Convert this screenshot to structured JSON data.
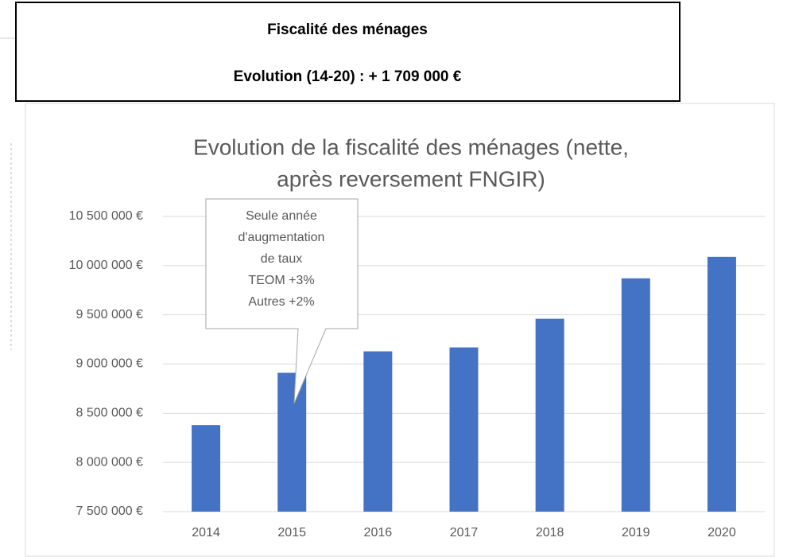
{
  "header": {
    "title": "Fiscalité des ménages",
    "subtitle": "Evolution (14-20) : + 1 709 000 €"
  },
  "chart_data": {
    "type": "bar",
    "title": [
      "Evolution de la fiscalité des ménages (nette,",
      "après reversement FNGIR)"
    ],
    "categories": [
      "2014",
      "2015",
      "2016",
      "2017",
      "2018",
      "2019",
      "2020"
    ],
    "values": [
      8380000,
      8911000,
      9129000,
      9169000,
      9460000,
      9871000,
      10089000
    ],
    "color": "#4472c4",
    "ylim": [
      7500000,
      10500000
    ],
    "yticks": [
      {
        "value": 7500000,
        "label": "7 500 000 €"
      },
      {
        "value": 8000000,
        "label": "8 000 000 €"
      },
      {
        "value": 8500000,
        "label": "8 500 000 €"
      },
      {
        "value": 9000000,
        "label": "9 000 000 €"
      },
      {
        "value": 9500000,
        "label": "9 500 000 €"
      },
      {
        "value": 10000000,
        "label": "10 000 000 €"
      },
      {
        "value": 10500000,
        "label": "10 500 000 €"
      }
    ],
    "grid": true,
    "annotation": [
      "Seule année",
      "d'augmentation",
      "de taux",
      "TEOM +3%",
      "Autres +2%"
    ]
  }
}
